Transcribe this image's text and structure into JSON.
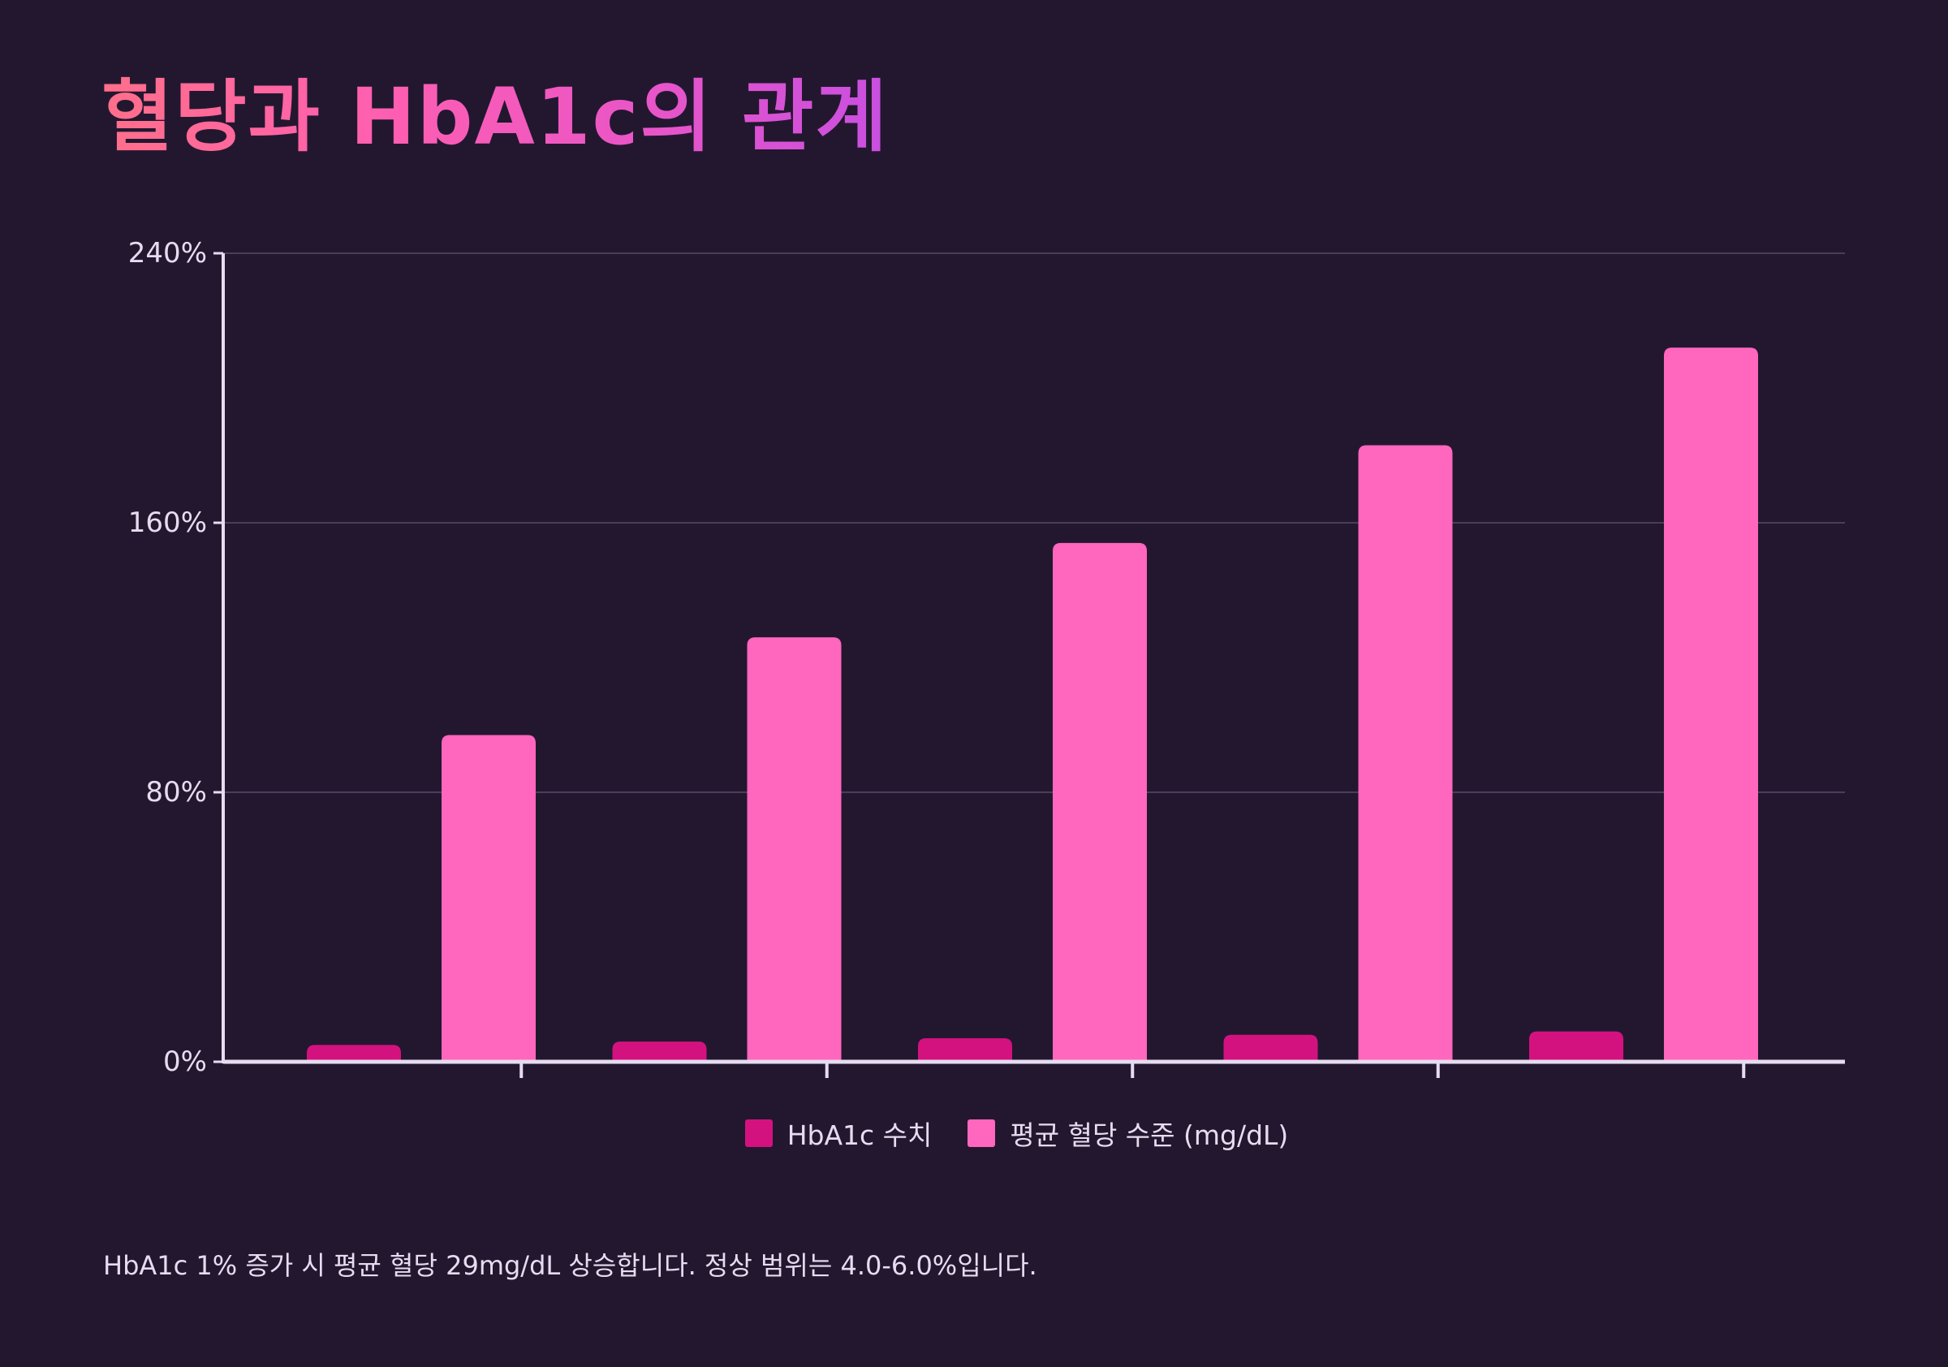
{
  "title": "혈당과 HbA1c의 관계",
  "footnote": "HbA1c 1% 증가 시 평균 혈당 29mg/dL 상승합니다. 정상 범위는 4.0-6.0%입니다.",
  "colors": {
    "background": "#231730",
    "series_hba1c": "#d4127f",
    "series_glucose": "#ff66bd",
    "axis": "#e6dcef",
    "grid": "#4a3d5a"
  },
  "chart_data": {
    "type": "bar",
    "categories": [
      "",
      "",
      "",
      "",
      ""
    ],
    "series": [
      {
        "name": "HbA1c 수치",
        "values": [
          5,
          6,
          7,
          8,
          9
        ]
      },
      {
        "name": "평균 혈당 수준 (mg/dL)",
        "values": [
          97,
          126,
          154,
          183,
          212
        ]
      }
    ],
    "y_ticks": [
      "0%",
      "80%",
      "160%",
      "240%"
    ],
    "ylim": [
      0,
      240
    ],
    "grid": true,
    "legend_position": "bottom"
  }
}
